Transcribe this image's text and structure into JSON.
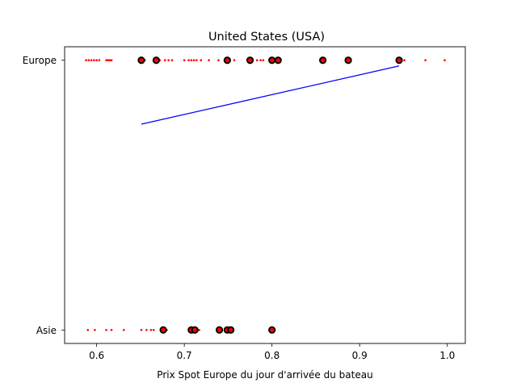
{
  "chart_data": {
    "type": "scatter",
    "title": "United States (USA)",
    "xlabel": "Prix Spot Europe du jour d'arrivée du bateau",
    "ylabel": "",
    "xlim": [
      0.5635,
      1.0205
    ],
    "xticks": [
      0.6,
      0.7,
      0.8,
      0.9,
      1.0
    ],
    "xtick_labels": [
      "0.6",
      "0.7",
      "0.8",
      "0.9",
      "1.0"
    ],
    "ylim": [
      -0.05,
      1.05
    ],
    "yticks": [
      0,
      1
    ],
    "categories": [
      "Asie",
      "Europe"
    ],
    "grid": false,
    "series": [
      {
        "marker": "small-red-dot",
        "color": "#ff0000",
        "points": [
          {
            "x": 0.588,
            "y": 1
          },
          {
            "x": 0.591,
            "y": 1
          },
          {
            "x": 0.594,
            "y": 1
          },
          {
            "x": 0.597,
            "y": 1
          },
          {
            "x": 0.6,
            "y": 1
          },
          {
            "x": 0.603,
            "y": 1
          },
          {
            "x": 0.611,
            "y": 1
          },
          {
            "x": 0.613,
            "y": 1
          },
          {
            "x": 0.615,
            "y": 1
          },
          {
            "x": 0.617,
            "y": 1
          },
          {
            "x": 0.651,
            "y": 1
          },
          {
            "x": 0.655,
            "y": 1
          },
          {
            "x": 0.666,
            "y": 1
          },
          {
            "x": 0.672,
            "y": 1
          },
          {
            "x": 0.678,
            "y": 1
          },
          {
            "x": 0.682,
            "y": 1
          },
          {
            "x": 0.686,
            "y": 1
          },
          {
            "x": 0.7,
            "y": 1
          },
          {
            "x": 0.705,
            "y": 1
          },
          {
            "x": 0.708,
            "y": 1
          },
          {
            "x": 0.711,
            "y": 1
          },
          {
            "x": 0.714,
            "y": 1
          },
          {
            "x": 0.719,
            "y": 1
          },
          {
            "x": 0.728,
            "y": 1
          },
          {
            "x": 0.739,
            "y": 1
          },
          {
            "x": 0.749,
            "y": 1
          },
          {
            "x": 0.752,
            "y": 1
          },
          {
            "x": 0.757,
            "y": 1
          },
          {
            "x": 0.775,
            "y": 1
          },
          {
            "x": 0.783,
            "y": 1
          },
          {
            "x": 0.787,
            "y": 1
          },
          {
            "x": 0.79,
            "y": 1
          },
          {
            "x": 0.8,
            "y": 1
          },
          {
            "x": 0.807,
            "y": 1
          },
          {
            "x": 0.858,
            "y": 1
          },
          {
            "x": 0.887,
            "y": 1
          },
          {
            "x": 0.945,
            "y": 1
          },
          {
            "x": 0.951,
            "y": 1
          },
          {
            "x": 0.975,
            "y": 1
          },
          {
            "x": 0.997,
            "y": 1
          },
          {
            "x": 0.59,
            "y": 0
          },
          {
            "x": 0.598,
            "y": 0
          },
          {
            "x": 0.611,
            "y": 0
          },
          {
            "x": 0.617,
            "y": 0
          },
          {
            "x": 0.631,
            "y": 0
          },
          {
            "x": 0.651,
            "y": 0
          },
          {
            "x": 0.657,
            "y": 0
          },
          {
            "x": 0.662,
            "y": 0
          },
          {
            "x": 0.665,
            "y": 0
          },
          {
            "x": 0.676,
            "y": 0
          },
          {
            "x": 0.68,
            "y": 0
          },
          {
            "x": 0.707,
            "y": 0
          },
          {
            "x": 0.71,
            "y": 0
          },
          {
            "x": 0.713,
            "y": 0
          },
          {
            "x": 0.717,
            "y": 0
          },
          {
            "x": 0.74,
            "y": 0
          },
          {
            "x": 0.747,
            "y": 0
          },
          {
            "x": 0.75,
            "y": 0
          },
          {
            "x": 0.752,
            "y": 0
          },
          {
            "x": 0.754,
            "y": 0
          },
          {
            "x": 0.8,
            "y": 0
          }
        ]
      },
      {
        "marker": "black-ring-red-center",
        "color": "#000000",
        "points": [
          {
            "x": 0.651,
            "y": 1
          },
          {
            "x": 0.668,
            "y": 1
          },
          {
            "x": 0.749,
            "y": 1
          },
          {
            "x": 0.775,
            "y": 1
          },
          {
            "x": 0.8,
            "y": 1
          },
          {
            "x": 0.807,
            "y": 1
          },
          {
            "x": 0.858,
            "y": 1
          },
          {
            "x": 0.887,
            "y": 1
          },
          {
            "x": 0.945,
            "y": 1
          },
          {
            "x": 0.676,
            "y": 0
          },
          {
            "x": 0.708,
            "y": 0
          },
          {
            "x": 0.712,
            "y": 0
          },
          {
            "x": 0.74,
            "y": 0
          },
          {
            "x": 0.749,
            "y": 0
          },
          {
            "x": 0.753,
            "y": 0
          },
          {
            "x": 0.8,
            "y": 0
          }
        ]
      }
    ],
    "line": {
      "color": "#0000ff",
      "points": [
        {
          "x": 0.651,
          "y": 0.763
        },
        {
          "x": 0.945,
          "y": 0.979
        }
      ]
    }
  }
}
